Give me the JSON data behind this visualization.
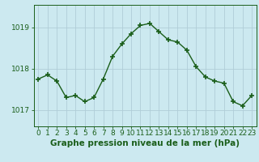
{
  "x": [
    0,
    1,
    2,
    3,
    4,
    5,
    6,
    7,
    8,
    9,
    10,
    11,
    12,
    13,
    14,
    15,
    16,
    17,
    18,
    19,
    20,
    21,
    22,
    23
  ],
  "y": [
    1017.75,
    1017.85,
    1017.7,
    1017.3,
    1017.35,
    1017.2,
    1017.3,
    1017.75,
    1018.3,
    1018.6,
    1018.85,
    1019.05,
    1019.1,
    1018.9,
    1018.7,
    1018.65,
    1018.45,
    1018.05,
    1017.8,
    1017.7,
    1017.65,
    1017.2,
    1017.1,
    1017.35
  ],
  "line_color": "#1a5e1a",
  "marker": "+",
  "marker_size": 5,
  "marker_lw": 1.2,
  "bg_color": "#cce9f0",
  "grid_color": "#b0cdd8",
  "xlabel": "Graphe pression niveau de la mer (hPa)",
  "xlabel_fontsize": 7.5,
  "ytick_labels": [
    "1017",
    "1018",
    "1019"
  ],
  "yticks": [
    1017,
    1018,
    1019
  ],
  "ylim": [
    1016.6,
    1019.55
  ],
  "xlim": [
    -0.5,
    23.5
  ],
  "axis_label_color": "#1a5e1a",
  "tick_color": "#1a5e1a",
  "tick_fontsize": 6.5,
  "linewidth": 1.0
}
